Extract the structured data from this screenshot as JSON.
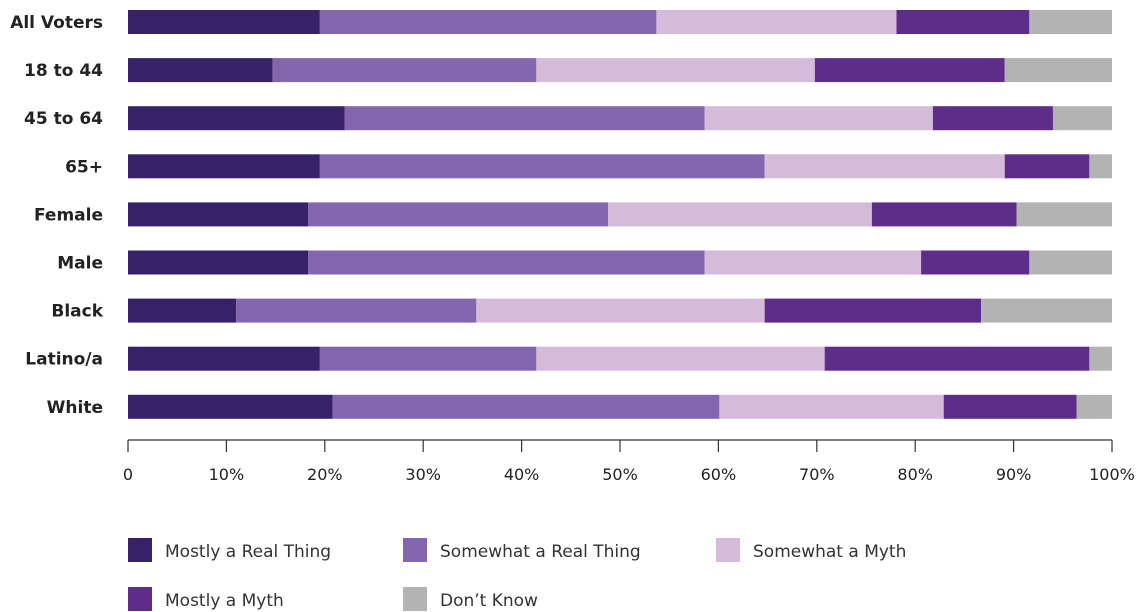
{
  "chart_data": {
    "type": "bar",
    "orientation": "horizontal",
    "stacked": true,
    "categories": [
      "All Voters",
      "18 to 44",
      "45 to 64",
      "65+",
      "Female",
      "Male",
      "Black",
      "Latino/a",
      "White"
    ],
    "series": [
      {
        "name": "Mostly a Real Thing",
        "color": "#37226a",
        "values": [
          19.5,
          14.7,
          22,
          19.5,
          18.3,
          18.3,
          11,
          19.5,
          20.8
        ]
      },
      {
        "name": "Somewhat a Real Thing",
        "color": "#8466ae",
        "values": [
          34.2,
          26.8,
          36.6,
          45.2,
          30.5,
          40.3,
          24.4,
          22,
          39.3
        ]
      },
      {
        "name": "Somewhat a Myth",
        "color": "#d5bad9",
        "values": [
          24.4,
          28.3,
          23.2,
          24.4,
          26.8,
          22,
          29.3,
          29.3,
          22.8
        ]
      },
      {
        "name": "Mostly a Myth",
        "color": "#5e2c89",
        "values": [
          13.5,
          19.3,
          12.2,
          8.6,
          14.7,
          11,
          22,
          26.9,
          13.5
        ]
      },
      {
        "name": "Don’t Know",
        "color": "#b3b3b3",
        "values": [
          8.4,
          10.9,
          6,
          2.3,
          9.7,
          8.4,
          13.3,
          2.3,
          3.6
        ]
      }
    ],
    "xlim": [
      0,
      100
    ],
    "xticks": [
      0,
      10,
      20,
      30,
      40,
      50,
      60,
      70,
      80,
      90,
      100
    ],
    "xtick_labels": [
      "0",
      "10%",
      "20%",
      "30%",
      "40%",
      "50%",
      "60%",
      "70%",
      "80%",
      "90%",
      "100%"
    ],
    "legend_position": "bottom-left",
    "grid": false
  }
}
